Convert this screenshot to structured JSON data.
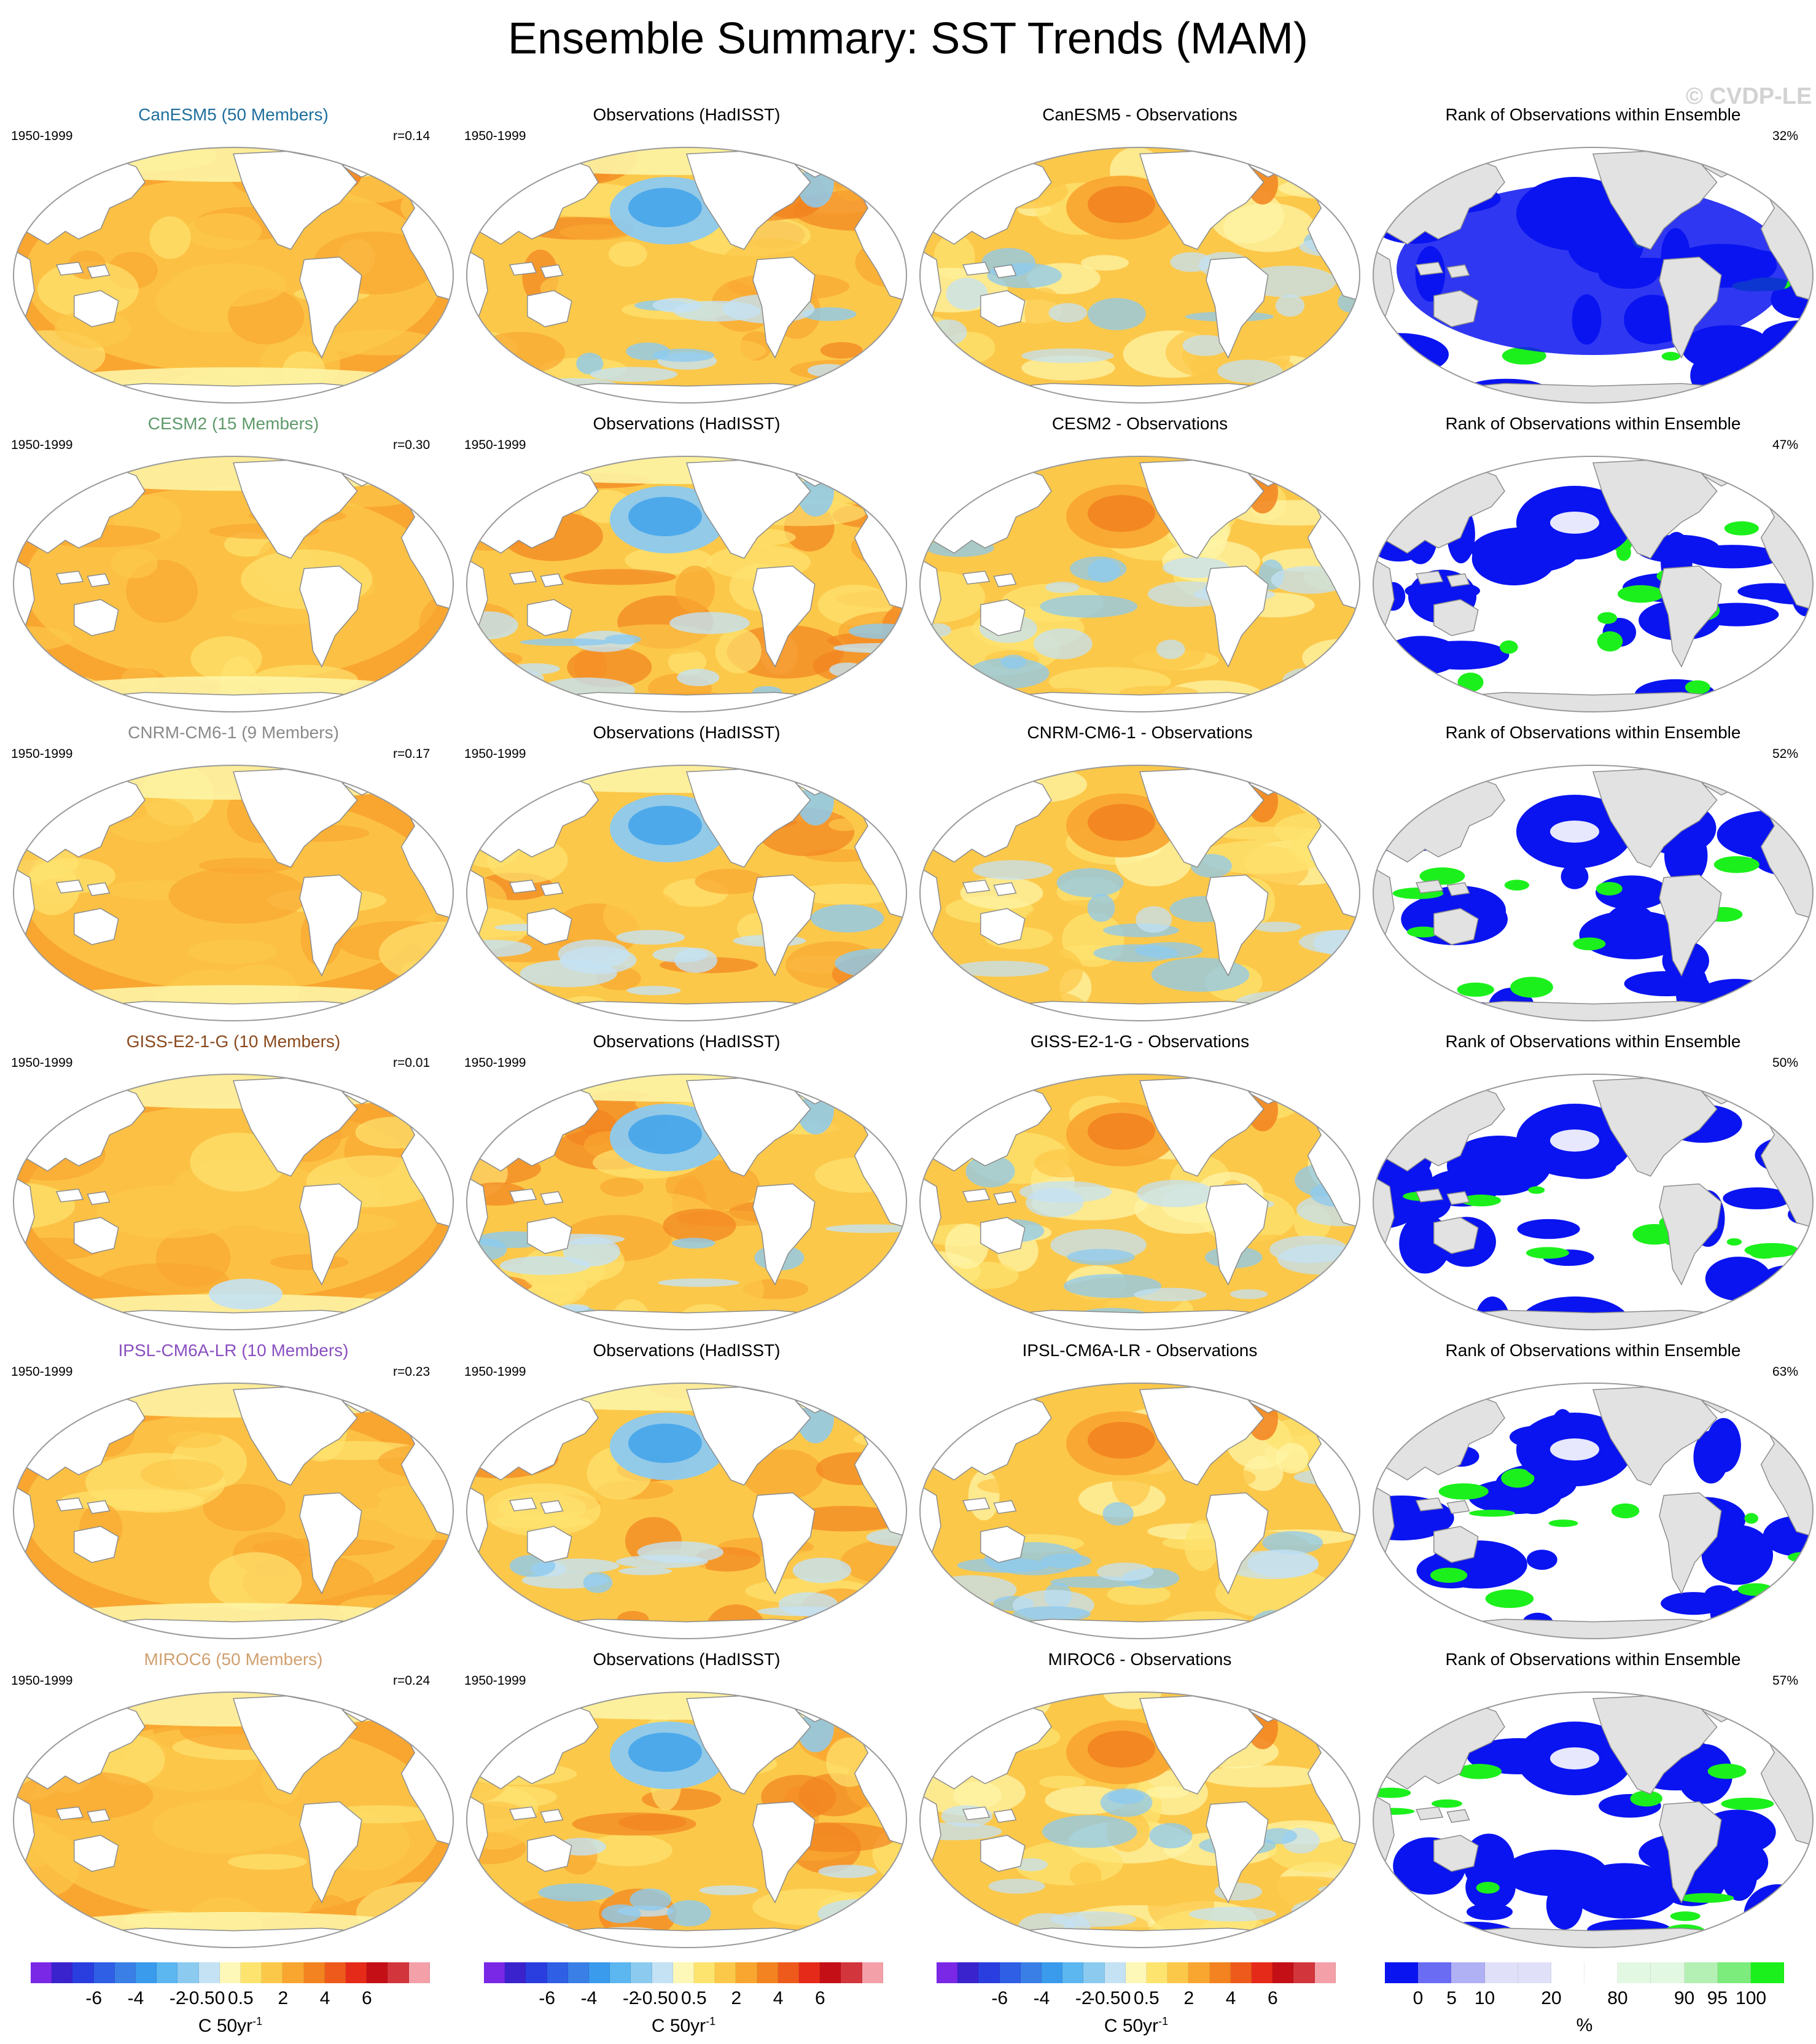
{
  "figure": {
    "title": "Ensemble Summary: SST Trends (MAM)",
    "watermark": "© CVDP-LE"
  },
  "colors": {
    "ocean_warm": [
      "#fdf4a5",
      "#fde36f",
      "#fcc84a",
      "#f9a631",
      "#f28320",
      "#e55a1c",
      "#c9291c"
    ],
    "ocean_cool": [
      "#c4e2f4",
      "#8ccaf0",
      "#4aa7ea",
      "#2e7be4",
      "#2a4fd8",
      "#3a22cc"
    ],
    "land_trend": "#ffffff",
    "land_rank": "#e2e2e2",
    "rank_low": "#0a14f0",
    "rank_high": "#1cf01c",
    "outline": "#8c8c8c"
  },
  "rows": [
    {
      "model": "CanESM5 (50 Members)",
      "model_color": "#1f6f9c",
      "period": "1950-1999",
      "r": "r=0.14",
      "obs_title": "Observations (HadISST)",
      "obs_period": "1950-1999",
      "diff_title": "CanESM5 - Observations",
      "rank_title": "Rank of Observations within Ensemble",
      "rank_pct": "32%"
    },
    {
      "model": "CESM2 (15 Members)",
      "model_color": "#5f9a6a",
      "period": "1950-1999",
      "r": "r=0.30",
      "obs_title": "Observations (HadISST)",
      "obs_period": "1950-1999",
      "diff_title": "CESM2 - Observations",
      "rank_title": "Rank of Observations within Ensemble",
      "rank_pct": "47%"
    },
    {
      "model": "CNRM-CM6-1 (9 Members)",
      "model_color": "#8a8a8a",
      "period": "1950-1999",
      "r": "r=0.17",
      "obs_title": "Observations (HadISST)",
      "obs_period": "1950-1999",
      "diff_title": "CNRM-CM6-1 - Observations",
      "rank_title": "Rank of Observations within Ensemble",
      "rank_pct": "52%"
    },
    {
      "model": "GISS-E2-1-G (10 Members)",
      "model_color": "#8a4a1e",
      "period": "1950-1999",
      "r": "r=0.01",
      "obs_title": "Observations (HadISST)",
      "obs_period": "1950-1999",
      "diff_title": "GISS-E2-1-G - Observations",
      "rank_title": "Rank of Observations within Ensemble",
      "rank_pct": "50%"
    },
    {
      "model": "IPSL-CM6A-LR (10 Members)",
      "model_color": "#8a4fc0",
      "period": "1950-1999",
      "r": "r=0.23",
      "obs_title": "Observations (HadISST)",
      "obs_period": "1950-1999",
      "diff_title": "IPSL-CM6A-LR - Observations",
      "rank_title": "Rank of Observations within Ensemble",
      "rank_pct": "63%"
    },
    {
      "model": "MIROC6 (50 Members)",
      "model_color": "#d0a070",
      "period": "1950-1999",
      "r": "r=0.24",
      "obs_title": "Observations (HadISST)",
      "obs_period": "1950-1999",
      "diff_title": "MIROC6 - Observations",
      "rank_title": "Rank of Observations within Ensemble",
      "rank_pct": "57%"
    }
  ],
  "colorbars": {
    "trend": {
      "colors": [
        "#7a28e6",
        "#3a22cc",
        "#2a3ee0",
        "#2e5fe4",
        "#3a7fe6",
        "#3a9aec",
        "#5cb6f0",
        "#8ccaf0",
        "#c4e2f4",
        "#fdf7b8",
        "#fde46e",
        "#fcc84a",
        "#f9a631",
        "#f28320",
        "#ee5a1c",
        "#e52a1a",
        "#c40f16",
        "#d2353c",
        "#f3a0a8"
      ],
      "ticks": [
        "-6",
        "-4",
        "-2",
        "-0.5",
        "0",
        "0.5",
        "2",
        "4",
        "6"
      ],
      "tick_positions_fraction": [
        0.158,
        0.263,
        0.368,
        0.421,
        0.474,
        0.526,
        0.632,
        0.737,
        0.842
      ],
      "units": "C 50yr",
      "units_sup": "-1"
    },
    "rank": {
      "colors": [
        "#0a14f0",
        "#6a6cf4",
        "#b0b0f4",
        "#e0e0f8",
        "#e0e0f8",
        "#ffffff",
        "#ffffff",
        "#e2f8e2",
        "#e2f8e2",
        "#b4f0b4",
        "#7cec7c",
        "#1cf01c"
      ],
      "ticks": [
        "0",
        "5",
        "10",
        "20",
        "80",
        "90",
        "95",
        "100"
      ],
      "tick_positions_fraction": [
        0.083,
        0.167,
        0.25,
        0.417,
        0.583,
        0.75,
        0.833,
        0.917
      ],
      "units": "%"
    }
  }
}
